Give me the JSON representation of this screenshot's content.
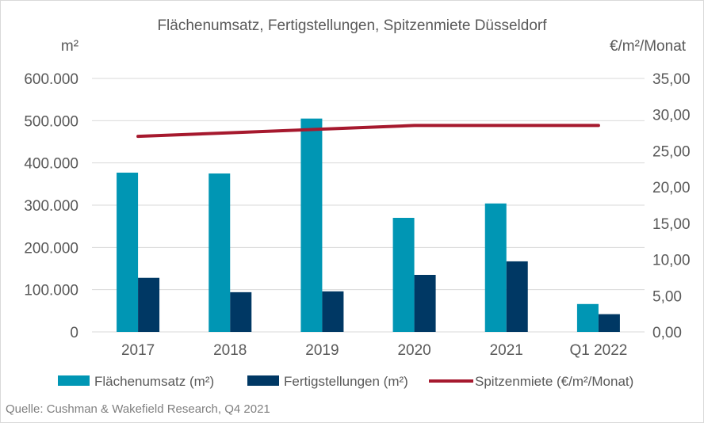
{
  "chart_data": {
    "type": "bar",
    "title": "Flächenumsatz, Fertigstellungen, Spitzenmiete Düsseldorf",
    "y_unit_left": "m²",
    "y_unit_right": "€/m²/Monat",
    "categories": [
      "2017",
      "2018",
      "2019",
      "2020",
      "2021",
      "Q1 2022"
    ],
    "series": [
      {
        "name": "Flächenumsatz (m²)",
        "type": "bar",
        "axis": "left",
        "color": "#0096b4",
        "values": [
          377000,
          375000,
          505000,
          270000,
          304000,
          66000
        ]
      },
      {
        "name": "Fertigstellungen (m²)",
        "type": "bar",
        "axis": "left",
        "color": "#003864",
        "values": [
          128000,
          94000,
          96000,
          135000,
          167000,
          42000
        ]
      },
      {
        "name": "Spitzenmiete (€/m²/Monat)",
        "type": "line",
        "axis": "right",
        "color": "#a6192e",
        "values": [
          27.0,
          27.5,
          28.0,
          28.5,
          28.5,
          28.5
        ]
      }
    ],
    "ylim_left": [
      0,
      600000
    ],
    "ylim_right": [
      0,
      35
    ],
    "yticks_left": [
      "0",
      "100.000",
      "200.000",
      "300.000",
      "400.000",
      "500.000",
      "600.000"
    ],
    "yticks_right": [
      "0,00",
      "5,00",
      "10,00",
      "15,00",
      "20,00",
      "25,00",
      "30,00",
      "35,00"
    ],
    "grid": true,
    "legend_position": "bottom"
  },
  "source": "Quelle: Cushman & Wakefield Research, Q4 2021"
}
